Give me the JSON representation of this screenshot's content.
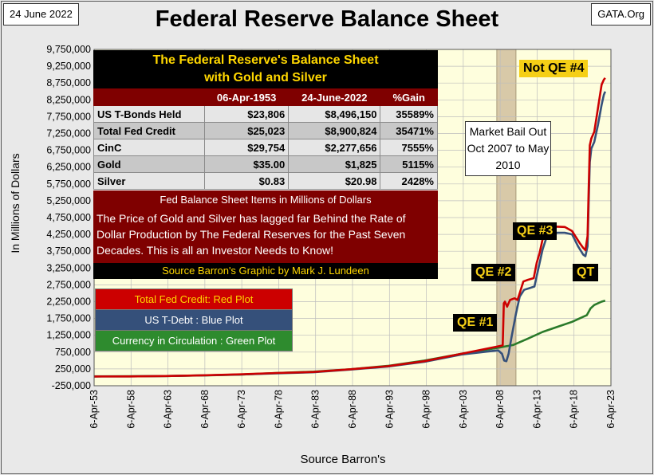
{
  "date_tag": "24 June 2022",
  "site_tag": "GATA.Org",
  "title": "Federal Reserve Balance Sheet",
  "chart_data": {
    "type": "line",
    "ylabel": "In Millions  of  Dollars",
    "xlabel": "Source Barron's",
    "ylim": [
      -250000,
      9750000
    ],
    "yticks": [
      -250000,
      250000,
      750000,
      1250000,
      1750000,
      2250000,
      2750000,
      3250000,
      3750000,
      4250000,
      4750000,
      5250000,
      5750000,
      6250000,
      6750000,
      7250000,
      7750000,
      8250000,
      8750000,
      9250000,
      9750000
    ],
    "ytick_labels": [
      "-250,000",
      "250,000",
      "750,000",
      "1,250,000",
      "1,750,000",
      "2,250,000",
      "2,750,000",
      "3,250,000",
      "3,750,000",
      "4,250,000",
      "4,750,000",
      "5,250,000",
      "5,750,000",
      "6,250,000",
      "6,750,000",
      "7,250,000",
      "7,750,000",
      "8,250,000",
      "8,750,000",
      "9,250,000",
      "9,750,000"
    ],
    "xlim": [
      1953.26,
      2023.26
    ],
    "xticks": [
      1953.26,
      1958.26,
      1963.26,
      1968.26,
      1973.26,
      1978.26,
      1983.26,
      1988.26,
      1993.26,
      1998.26,
      2003.26,
      2008.26,
      2013.26,
      2018.26,
      2023.26
    ],
    "xtick_labels": [
      "6-Apr-53",
      "6-Apr-58",
      "6-Apr-63",
      "6-Apr-68",
      "6-Apr-73",
      "6-Apr-78",
      "6-Apr-83",
      "6-Apr-88",
      "6-Apr-93",
      "6-Apr-98",
      "6-Apr-03",
      "6-Apr-08",
      "6-Apr-13",
      "6-Apr-18",
      "6-Apr-23"
    ],
    "grid": true,
    "shaded_period": {
      "start": 2007.8,
      "end": 2010.4,
      "color": "#d8c9a8"
    },
    "series": [
      {
        "name": "Total Fed Credit: Red Plot",
        "color": "#cc0000",
        "x": [
          1953.26,
          1958,
          1963,
          1968,
          1973,
          1978,
          1983,
          1988,
          1993,
          1998,
          2003,
          2007.5,
          2008.6,
          2008.75,
          2008.9,
          2009.2,
          2009.6,
          2010.2,
          2010.6,
          2010.9,
          2011.4,
          2012.0,
          2012.8,
          2013.2,
          2013.6,
          2014.2,
          2014.9,
          2016.0,
          2017.0,
          2018.0,
          2019.0,
          2019.5,
          2019.8,
          2020.1,
          2020.25,
          2020.4,
          2020.6,
          2021.0,
          2021.5,
          2022.0,
          2022.3,
          2022.48
        ],
        "y": [
          25023,
          28000,
          40000,
          60000,
          90000,
          130000,
          160000,
          240000,
          330000,
          480000,
          700000,
          900000,
          950000,
          2200000,
          2250000,
          2100000,
          2300000,
          2350000,
          2300000,
          2500000,
          2850000,
          2900000,
          2950000,
          3400000,
          3700000,
          4300000,
          4480000,
          4480000,
          4470000,
          4350000,
          4000000,
          3850000,
          3780000,
          4200000,
          5600000,
          6900000,
          7100000,
          7300000,
          8000000,
          8700000,
          8850000,
          8900824
        ]
      },
      {
        "name": "US T-Debt : Blue Plot",
        "color": "#35507a",
        "x": [
          1953.26,
          1958,
          1963,
          1968,
          1973,
          1978,
          1983,
          1988,
          1993,
          1998,
          2003,
          2007.5,
          2008.0,
          2008.5,
          2008.8,
          2009.1,
          2009.4,
          2009.8,
          2010.4,
          2010.9,
          2011.5,
          2012.2,
          2012.9,
          2013.4,
          2014.0,
          2014.6,
          2016.0,
          2017.0,
          2018.0,
          2018.8,
          2019.5,
          2019.8,
          2020.1,
          2020.25,
          2020.4,
          2020.6,
          2021.0,
          2021.5,
          2022.0,
          2022.3,
          2022.48
        ],
        "y": [
          23806,
          27000,
          38000,
          58000,
          85000,
          120000,
          150000,
          230000,
          320000,
          460000,
          680000,
          790000,
          800000,
          700000,
          500000,
          480000,
          700000,
          1200000,
          1900000,
          2400000,
          2600000,
          2650000,
          2700000,
          3200000,
          3800000,
          4200000,
          4300000,
          4300000,
          4250000,
          3900000,
          3650000,
          3600000,
          3900000,
          5200000,
          6400000,
          6800000,
          7000000,
          7500000,
          8100000,
          8400000,
          8496150
        ]
      },
      {
        "name": "Currency in Circulation : Green Plot",
        "color": "#2a7a2a",
        "x": [
          1953.26,
          1958,
          1963,
          1968,
          1973,
          1978,
          1983,
          1988,
          1993,
          1998,
          2003,
          2008,
          2010,
          2012,
          2014,
          2016,
          2018,
          2019,
          2020,
          2020.5,
          2021,
          2021.5,
          2022,
          2022.48
        ],
        "y": [
          29754,
          33000,
          40000,
          55000,
          80000,
          130000,
          170000,
          240000,
          340000,
          500000,
          700000,
          880000,
          960000,
          1150000,
          1350000,
          1500000,
          1650000,
          1750000,
          1850000,
          2050000,
          2150000,
          2200000,
          2250000,
          2277656
        ]
      }
    ]
  },
  "info_box": {
    "title_line1": "The Federal Reserve's Balance Sheet",
    "title_line2": "with Gold and Silver",
    "columns": [
      "",
      "06-Apr-1953",
      "24-June-2022",
      "%Gain"
    ],
    "rows": [
      {
        "label": "US T-Bonds Held",
        "v1953": "$23,806",
        "v2022": "$8,496,150",
        "gain": "35589%"
      },
      {
        "label": "Total Fed Credit",
        "v1953": "$25,023",
        "v2022": "$8,900,824",
        "gain": "35471%"
      },
      {
        "label": "CinC",
        "v1953": "$29,754",
        "v2022": "$2,277,656",
        "gain": "7555%"
      },
      {
        "label": "Gold",
        "v1953": "$35.00",
        "v2022": "$1,825",
        "gain": "5115%"
      },
      {
        "label": "Silver",
        "v1953": "$0.83",
        "v2022": "$20.98",
        "gain": "2428%"
      }
    ],
    "subtitle": "Fed Balance Sheet Items in Millions of Dollars",
    "body": "The Price of Gold and Silver has lagged far Behind the Rate of Dollar Production by The Federal Reserves for the Past Seven Decades.  This is all an Investor Needs to Know!",
    "source": "Source Barron's   Graphic by Mark J. Lundeen"
  },
  "legend": [
    {
      "label": "Total Fed Credit: Red Plot",
      "bg": "#cc0000",
      "fg": "#ffd700"
    },
    {
      "label": "US T-Debt : Blue Plot",
      "bg": "#35507a",
      "fg": "#ffffff"
    },
    {
      "label": "Currency in Circulation : Green Plot",
      "bg": "#2e8b2e",
      "fg": "#ffffff"
    }
  ],
  "annotations": {
    "qe1": "QE #1",
    "qe2": "QE #2",
    "qe3": "QE #3",
    "qt": "QT",
    "not_qe4": "Not QE #4",
    "bailout": "Market Bail Out Oct 2007 to May 2010"
  },
  "colors": {
    "plot_bg": "#fefedd",
    "grid": "#bdbdbd"
  }
}
